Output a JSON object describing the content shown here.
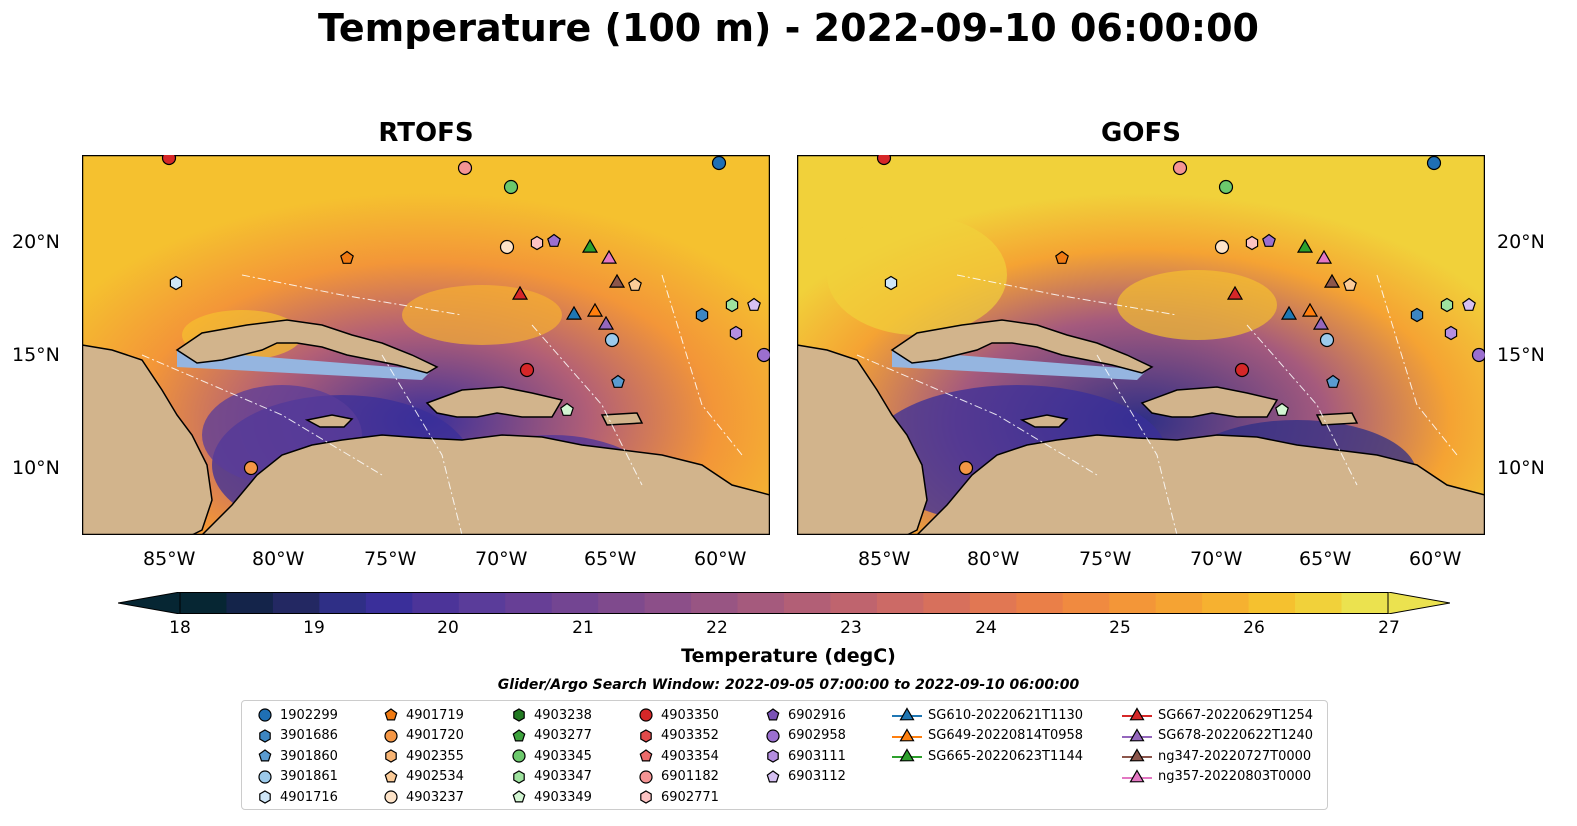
{
  "title": "Temperature (100 m) - 2022-09-10 06:00:00",
  "panels": [
    {
      "title": "RTOFS"
    },
    {
      "title": "GOFS"
    }
  ],
  "axes": {
    "lon_ticks": [
      "85°W",
      "80°W",
      "75°W",
      "70°W",
      "65°W",
      "60°W"
    ],
    "lat_ticks": [
      "20°N",
      "15°N",
      "10°N"
    ]
  },
  "colorbar": {
    "ticks": [
      "18",
      "19",
      "20",
      "21",
      "22",
      "23",
      "24",
      "25",
      "26",
      "27"
    ],
    "label": "Temperature (degC)",
    "min": 18,
    "max": 27,
    "extend": "both",
    "colors": [
      "#062633",
      "#14244a",
      "#232862",
      "#2f2f86",
      "#3a2f9a",
      "#4c3499",
      "#5a3c9a",
      "#673f96",
      "#734592",
      "#7f4a8d",
      "#8c4f89",
      "#985583",
      "#a55a7d",
      "#b25f76",
      "#bf646e",
      "#cc6a66",
      "#d7705c",
      "#e17753",
      "#ea7f48",
      "#f08a40",
      "#f39638",
      "#f5a333",
      "#f6b130",
      "#f5c12f",
      "#f1d13a",
      "#ebe24f"
    ]
  },
  "search_window": "Glider/Argo Search Window: 2022-09-05 07:00:00 to 2022-09-10 06:00:00",
  "legend": {
    "items": [
      {
        "label": "1902299",
        "color": "#1f6fb4",
        "shape": "circle"
      },
      {
        "label": "3901686",
        "color": "#3d86c2",
        "shape": "hexagon"
      },
      {
        "label": "3901860",
        "color": "#5a9bd0",
        "shape": "pentagon"
      },
      {
        "label": "3901861",
        "color": "#9ccaeb",
        "shape": "circle"
      },
      {
        "label": "4901716",
        "color": "#cfe6f7",
        "shape": "hexagon"
      },
      {
        "label": "4901719",
        "color": "#f07a12",
        "shape": "pentagon"
      },
      {
        "label": "4901720",
        "color": "#f59745",
        "shape": "circle"
      },
      {
        "label": "4902355",
        "color": "#f8b574",
        "shape": "hexagon"
      },
      {
        "label": "4902534",
        "color": "#fbcb98",
        "shape": "pentagon"
      },
      {
        "label": "4903237",
        "color": "#fde3c8",
        "shape": "circle"
      },
      {
        "label": "4903238",
        "color": "#227a22",
        "shape": "hexagon"
      },
      {
        "label": "4903277",
        "color": "#3ea33e",
        "shape": "pentagon"
      },
      {
        "label": "4903345",
        "color": "#6cc86c",
        "shape": "circle"
      },
      {
        "label": "4903347",
        "color": "#9ee29e",
        "shape": "hexagon"
      },
      {
        "label": "4903349",
        "color": "#d2f5d2",
        "shape": "pentagon"
      },
      {
        "label": "4903350",
        "color": "#d62728",
        "shape": "circle"
      },
      {
        "label": "4903352",
        "color": "#e14a4a",
        "shape": "hexagon"
      },
      {
        "label": "4903354",
        "color": "#ec6b6b",
        "shape": "pentagon"
      },
      {
        "label": "6901182",
        "color": "#f49494",
        "shape": "circle"
      },
      {
        "label": "6902771",
        "color": "#fcc3c3",
        "shape": "hexagon"
      },
      {
        "label": "6902916",
        "color": "#7a52b5",
        "shape": "pentagon"
      },
      {
        "label": "6902958",
        "color": "#9b6fcf",
        "shape": "circle"
      },
      {
        "label": "6903111",
        "color": "#b48ee0",
        "shape": "hexagon"
      },
      {
        "label": "6903112",
        "color": "#d6c0f2",
        "shape": "pentagon"
      },
      {
        "label": "SG610-20220621T1130",
        "color": "#1f77b4",
        "shape": "triangle"
      },
      {
        "label": "SG649-20220814T0958",
        "color": "#ff7f0e",
        "shape": "triangle"
      },
      {
        "label": "SG665-20220623T1144",
        "color": "#2ca02c",
        "shape": "triangle"
      },
      {
        "label": "SG667-20220629T1254",
        "color": "#d62728",
        "shape": "triangle"
      },
      {
        "label": "SG678-20220622T1240",
        "color": "#9467bd",
        "shape": "triangle"
      },
      {
        "label": "ng347-20220727T0000",
        "color": "#8c564b",
        "shape": "triangle"
      },
      {
        "label": "ng357-20220803T0000",
        "color": "#e377c2",
        "shape": "triangle"
      }
    ]
  },
  "colors": {
    "land": "#d2b48c",
    "shelf": "#95b5e0",
    "outside_domain": "#062633"
  }
}
